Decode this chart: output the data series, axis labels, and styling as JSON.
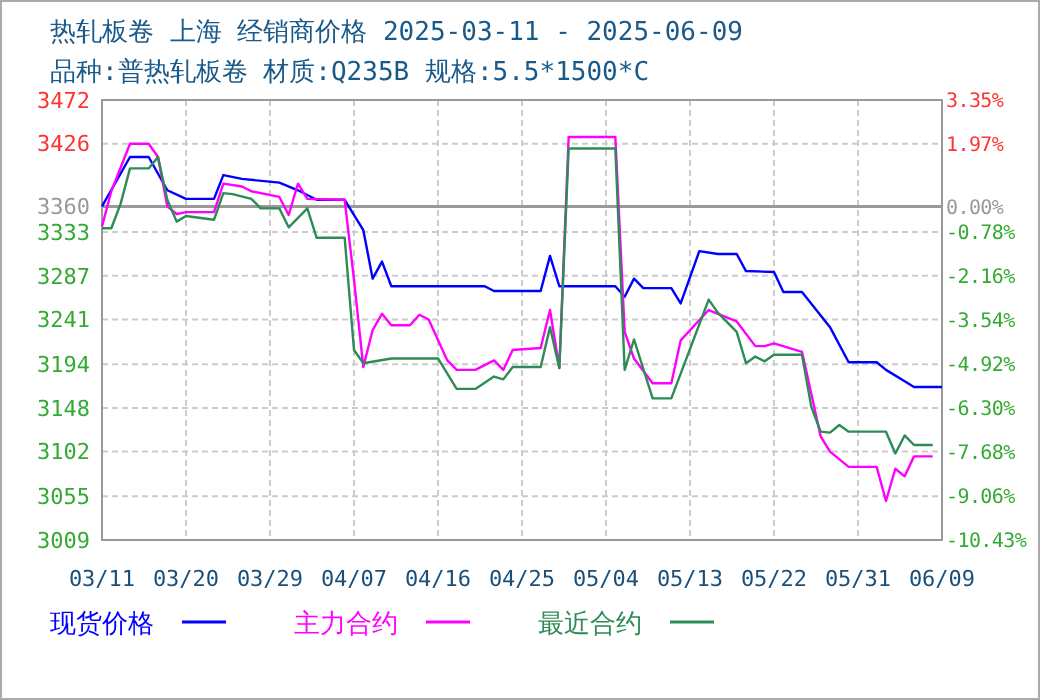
{
  "chart_data": {
    "type": "line",
    "title": "热轧板卷 上海 经销商价格 2025-03-11 - 2025-06-09",
    "subtitle": "品种:普热轧板卷 材质:Q235B 规格:5.5*1500*C",
    "xlim": [
      "2025-03-11",
      "2025-06-09"
    ],
    "xticks": [
      {
        "value": "2025-03-11",
        "label": "03/11"
      },
      {
        "value": "2025-03-20",
        "label": "03/20"
      },
      {
        "value": "2025-03-29",
        "label": "03/29"
      },
      {
        "value": "2025-04-07",
        "label": "04/07"
      },
      {
        "value": "2025-04-16",
        "label": "04/16"
      },
      {
        "value": "2025-04-25",
        "label": "04/25"
      },
      {
        "value": "2025-05-04",
        "label": "05/04"
      },
      {
        "value": "2025-05-13",
        "label": "05/13"
      },
      {
        "value": "2025-05-22",
        "label": "05/22"
      },
      {
        "value": "2025-05-31",
        "label": "05/31"
      },
      {
        "value": "2025-06-09",
        "label": "06/09"
      }
    ],
    "ylim": [
      3009,
      3472
    ],
    "yticks": [
      3009,
      3055,
      3102,
      3148,
      3194,
      3241,
      3287,
      3333,
      3360,
      3426,
      3472
    ],
    "y2lim": [
      -10.43,
      3.35
    ],
    "y2ticks": [
      {
        "value": -10.43,
        "label": "-10.43%"
      },
      {
        "value": -9.06,
        "label": "-9.06%"
      },
      {
        "value": -7.68,
        "label": "-7.68%"
      },
      {
        "value": -6.3,
        "label": "-6.30%"
      },
      {
        "value": -4.92,
        "label": "-4.92%"
      },
      {
        "value": -3.54,
        "label": "-3.54%"
      },
      {
        "value": -2.16,
        "label": "-2.16%"
      },
      {
        "value": -0.78,
        "label": "-0.78%"
      },
      {
        "value": 0,
        "label": "0.00%"
      },
      {
        "value": 1.97,
        "label": "1.97%"
      },
      {
        "value": 3.35,
        "label": "3.35%"
      }
    ],
    "ref_lines": [
      {
        "axis": "y",
        "value": 3360,
        "color": "#999999"
      }
    ],
    "grid": true,
    "legend": "bottom",
    "marker": "none",
    "line_style": "solid",
    "series": [
      {
        "name": "现货价格",
        "color": "#0000ff",
        "x": [
          "2025-03-11",
          "2025-03-14",
          "2025-03-16",
          "2025-03-18",
          "2025-03-20",
          "2025-03-23",
          "2025-03-24",
          "2025-03-26",
          "2025-03-30",
          "2025-04-01",
          "2025-04-03",
          "2025-04-06",
          "2025-04-08",
          "2025-04-09",
          "2025-04-10",
          "2025-04-11",
          "2025-04-21",
          "2025-04-22",
          "2025-04-27",
          "2025-04-28",
          "2025-04-29",
          "2025-05-05",
          "2025-05-06",
          "2025-05-07",
          "2025-05-08",
          "2025-05-11",
          "2025-05-12",
          "2025-05-14",
          "2025-05-16",
          "2025-05-18",
          "2025-05-19",
          "2025-05-22",
          "2025-05-23",
          "2025-05-25",
          "2025-05-28",
          "2025-05-30",
          "2025-06-02",
          "2025-06-03",
          "2025-06-05",
          "2025-06-06",
          "2025-06-09"
        ],
        "values": [
          3360,
          3412,
          3412,
          3377,
          3368,
          3368,
          3393,
          3389,
          3385,
          3377,
          3367,
          3367,
          3335,
          3284,
          3302,
          3276,
          3276,
          3271,
          3271,
          3308,
          3276,
          3276,
          3265,
          3284,
          3274,
          3274,
          3258,
          3313,
          3310,
          3310,
          3292,
          3291,
          3270,
          3270,
          3233,
          3196,
          3196,
          3188,
          3176,
          3170,
          3170
        ]
      },
      {
        "name": "主力合约",
        "color": "#ff00ff",
        "x": [
          "2025-03-11",
          "2025-03-12",
          "2025-03-14",
          "2025-03-16",
          "2025-03-17",
          "2025-03-18",
          "2025-03-19",
          "2025-03-20",
          "2025-03-23",
          "2025-03-24",
          "2025-03-26",
          "2025-03-27",
          "2025-03-30",
          "2025-03-31",
          "2025-04-01",
          "2025-04-02",
          "2025-04-06",
          "2025-04-07",
          "2025-04-08",
          "2025-04-09",
          "2025-04-10",
          "2025-04-11",
          "2025-04-13",
          "2025-04-14",
          "2025-04-15",
          "2025-04-17",
          "2025-04-18",
          "2025-04-20",
          "2025-04-22",
          "2025-04-23",
          "2025-04-24",
          "2025-04-27",
          "2025-04-28",
          "2025-04-29",
          "2025-04-30",
          "2025-05-05",
          "2025-05-06",
          "2025-05-07",
          "2025-05-09",
          "2025-05-11",
          "2025-05-12",
          "2025-05-15",
          "2025-05-18",
          "2025-05-20",
          "2025-05-21",
          "2025-05-22",
          "2025-05-25",
          "2025-05-26",
          "2025-05-27",
          "2025-05-28",
          "2025-05-30",
          "2025-06-02",
          "2025-06-03",
          "2025-06-04",
          "2025-06-05",
          "2025-06-06",
          "2025-06-08"
        ],
        "values": [
          3339,
          3376,
          3426,
          3426,
          3412,
          3360,
          3352,
          3354,
          3354,
          3384,
          3381,
          3376,
          3370,
          3351,
          3384,
          3368,
          3367,
          3283,
          3191,
          3230,
          3247,
          3235,
          3235,
          3246,
          3241,
          3198,
          3188,
          3188,
          3198,
          3188,
          3209,
          3211,
          3251,
          3190,
          3433,
          3433,
          3228,
          3200,
          3174,
          3174,
          3219,
          3251,
          3239,
          3213,
          3213,
          3216,
          3207,
          3163,
          3118,
          3102,
          3086,
          3086,
          3050,
          3084,
          3076,
          3097,
          3097
        ]
      },
      {
        "name": "最近合约",
        "color": "#2e8b57",
        "x": [
          "2025-03-11",
          "2025-03-12",
          "2025-03-13",
          "2025-03-14",
          "2025-03-16",
          "2025-03-17",
          "2025-03-18",
          "2025-03-19",
          "2025-03-20",
          "2025-03-23",
          "2025-03-24",
          "2025-03-25",
          "2025-03-27",
          "2025-03-28",
          "2025-03-30",
          "2025-03-31",
          "2025-04-02",
          "2025-04-03",
          "2025-04-06",
          "2025-04-07",
          "2025-04-08",
          "2025-04-11",
          "2025-04-16",
          "2025-04-18",
          "2025-04-20",
          "2025-04-22",
          "2025-04-23",
          "2025-04-24",
          "2025-04-27",
          "2025-04-28",
          "2025-04-29",
          "2025-04-30",
          "2025-05-05",
          "2025-05-06",
          "2025-05-07",
          "2025-05-09",
          "2025-05-11",
          "2025-05-15",
          "2025-05-16",
          "2025-05-18",
          "2025-05-19",
          "2025-05-20",
          "2025-05-21",
          "2025-05-22",
          "2025-05-25",
          "2025-05-26",
          "2025-05-27",
          "2025-05-28",
          "2025-05-29",
          "2025-05-30",
          "2025-06-03",
          "2025-06-04",
          "2025-06-05",
          "2025-06-06",
          "2025-06-08"
        ],
        "values": [
          3337,
          3337,
          3363,
          3400,
          3400,
          3412,
          3367,
          3344,
          3350,
          3346,
          3374,
          3373,
          3368,
          3358,
          3358,
          3338,
          3358,
          3327,
          3327,
          3209,
          3195,
          3200,
          3200,
          3168,
          3168,
          3181,
          3178,
          3191,
          3191,
          3233,
          3190,
          3421,
          3421,
          3188,
          3220,
          3158,
          3158,
          3262,
          3248,
          3228,
          3195,
          3202,
          3197,
          3204,
          3204,
          3149,
          3123,
          3122,
          3130,
          3123,
          3123,
          3100,
          3119,
          3109,
          3109
        ]
      }
    ]
  }
}
